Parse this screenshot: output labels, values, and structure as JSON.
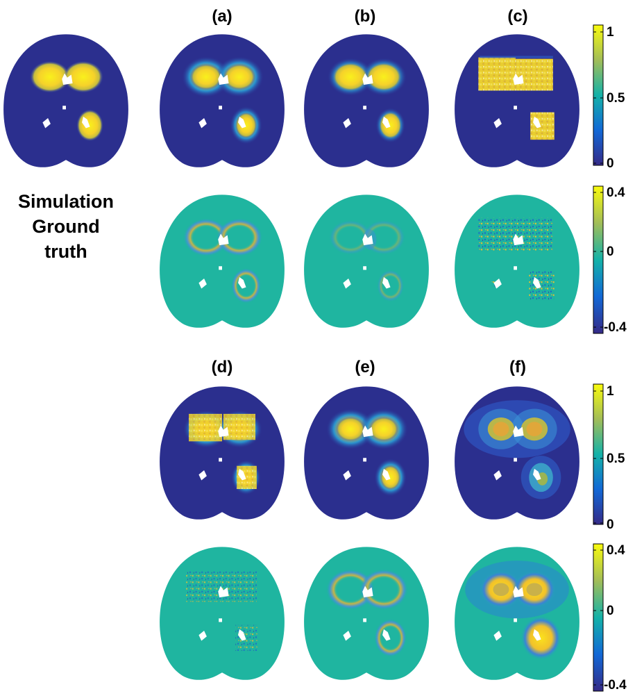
{
  "figure": {
    "panel_labels": [
      "(a)",
      "(b)",
      "(c)",
      "(d)",
      "(e)",
      "(f)"
    ],
    "side_label": [
      "Simulation",
      "Ground",
      "truth"
    ],
    "colorbars": [
      {
        "name": "intensity",
        "max": "1",
        "mid": "0.5",
        "min": "0"
      },
      {
        "name": "error",
        "max": "0.4",
        "mid": "0",
        "min": "-0.4"
      },
      {
        "name": "intensity-2",
        "max": "1",
        "mid": "0.5",
        "min": "0"
      },
      {
        "name": "error-2",
        "max": "0.4",
        "mid": "0",
        "min": "-0.4"
      }
    ]
  },
  "colors": {
    "background_dark": "#2b2f8e",
    "background_teal": "#1fb5a0",
    "hot_yellow": "#f9e61c",
    "hot_orange": "#f3b530",
    "cool_blue": "#1a6ed6"
  }
}
